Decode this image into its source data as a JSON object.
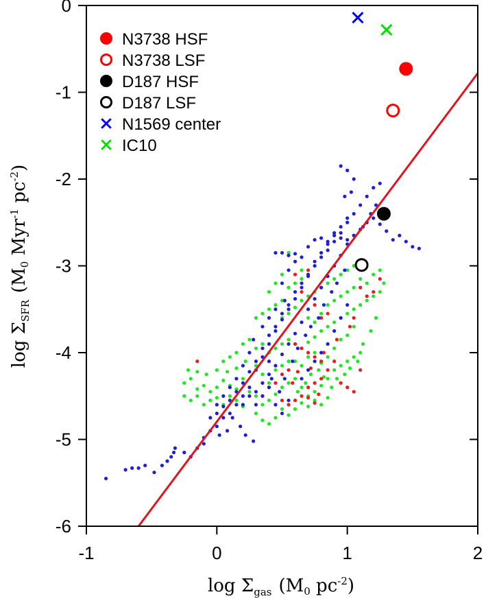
{
  "chart_data": {
    "type": "scatter",
    "xlim": [
      -1,
      2
    ],
    "ylim": [
      -6,
      0
    ],
    "x_ticks": [
      "-1",
      "0",
      "1",
      "2"
    ],
    "y_ticks": [
      "-6",
      "-5",
      "-4",
      "-3",
      "-2",
      "-1",
      "0"
    ],
    "xlabel": {
      "prefix": "log Σ",
      "sub": "gas",
      "suffix": "(M",
      "sub2": "0",
      "tail": " pc",
      "sup": "-2",
      "close": ")"
    },
    "ylabel": {
      "prefix": "log Σ",
      "sub": "SFR",
      "suffix": "(M",
      "sub2": "0",
      "tail": " Myr",
      "sup": "-1",
      "tail2": " pc",
      "sup2": "-2",
      "close": ")"
    },
    "grid": false,
    "legend_position": "top-left",
    "legend": [
      {
        "label": "N3738 HSF",
        "marker": "filled-circle",
        "color": "#ff0000"
      },
      {
        "label": "N3738 LSF",
        "marker": "open-circle",
        "color": "#ff0000"
      },
      {
        "label": "D187 HSF",
        "marker": "filled-circle",
        "color": "#000000"
      },
      {
        "label": "D187 LSF",
        "marker": "open-circle",
        "color": "#000000"
      },
      {
        "label": "N1569 center",
        "marker": "cross",
        "color": "#0000ff"
      },
      {
        "label": "IC10",
        "marker": "cross",
        "color": "#00e000"
      }
    ],
    "highlight_points": [
      {
        "name": "N3738 HSF",
        "x": 1.45,
        "y": -0.73,
        "marker": "filled-circle",
        "color": "#ff0000"
      },
      {
        "name": "N3738 LSF",
        "x": 1.35,
        "y": -1.21,
        "marker": "open-circle",
        "color": "#ff0000"
      },
      {
        "name": "D187 HSF",
        "x": 1.28,
        "y": -2.4,
        "marker": "filled-circle",
        "color": "#000000"
      },
      {
        "name": "D187 LSF",
        "x": 1.11,
        "y": -2.99,
        "marker": "open-circle",
        "color": "#000000"
      },
      {
        "name": "N1569 center",
        "x": 1.08,
        "y": -0.14,
        "marker": "cross",
        "color": "#0000ff"
      },
      {
        "name": "IC10",
        "x": 1.3,
        "y": -0.28,
        "marker": "cross",
        "color": "#00e000"
      }
    ],
    "fit_line": {
      "color": "#e0141e",
      "points": [
        [
          -0.6,
          -6.0
        ],
        [
          2.0,
          -0.78
        ]
      ]
    },
    "blue_points": [
      [
        -0.85,
        -5.45
      ],
      [
        -0.7,
        -5.35
      ],
      [
        -0.65,
        -5.33
      ],
      [
        -0.6,
        -5.33
      ],
      [
        -0.55,
        -5.3
      ],
      [
        -0.48,
        -5.38
      ],
      [
        -0.42,
        -5.3
      ],
      [
        -0.38,
        -5.25
      ],
      [
        -0.33,
        -5.15
      ],
      [
        -0.32,
        -5.1
      ],
      [
        -0.2,
        -5.2
      ],
      [
        -0.15,
        -5.1
      ],
      [
        -0.1,
        -4.98
      ],
      [
        -0.05,
        -4.9
      ],
      [
        0.0,
        -4.85
      ],
      [
        0.05,
        -4.75
      ],
      [
        0.1,
        -4.7
      ],
      [
        0.15,
        -4.6
      ],
      [
        0.2,
        -4.5
      ],
      [
        0.25,
        -4.4
      ],
      [
        -0.05,
        -4.75
      ],
      [
        0.0,
        -4.7
      ],
      [
        0.05,
        -4.62
      ],
      [
        0.1,
        -4.55
      ],
      [
        0.15,
        -4.45
      ],
      [
        0.2,
        -4.35
      ],
      [
        0.25,
        -4.22
      ],
      [
        0.3,
        -4.1
      ],
      [
        0.35,
        -3.95
      ],
      [
        0.4,
        -3.8
      ],
      [
        0.45,
        -3.7
      ],
      [
        0.5,
        -3.55
      ],
      [
        0.55,
        -3.45
      ],
      [
        0.6,
        -3.3
      ],
      [
        0.65,
        -3.2
      ],
      [
        0.7,
        -3.1
      ],
      [
        0.75,
        -2.95
      ],
      [
        0.8,
        -2.85
      ],
      [
        0.85,
        -2.75
      ],
      [
        0.9,
        -2.65
      ],
      [
        0.95,
        -2.55
      ],
      [
        1.0,
        -2.5
      ],
      [
        1.05,
        -2.4
      ],
      [
        1.1,
        -2.3
      ],
      [
        1.15,
        -2.2
      ],
      [
        1.2,
        -2.1
      ],
      [
        1.25,
        -2.05
      ],
      [
        1.22,
        -2.3
      ],
      [
        1.18,
        -2.4
      ],
      [
        1.12,
        -2.55
      ],
      [
        0.3,
        -4.2
      ],
      [
        0.35,
        -4.05
      ],
      [
        0.4,
        -3.9
      ],
      [
        0.45,
        -3.75
      ],
      [
        0.5,
        -3.62
      ],
      [
        0.55,
        -3.5
      ],
      [
        0.6,
        -3.38
      ],
      [
        0.65,
        -3.25
      ],
      [
        0.7,
        -3.12
      ],
      [
        0.75,
        -3.0
      ],
      [
        0.8,
        -2.9
      ],
      [
        0.85,
        -2.82
      ],
      [
        0.9,
        -2.72
      ],
      [
        0.95,
        -2.62
      ],
      [
        1.0,
        -2.45
      ],
      [
        0.3,
        -4.45
      ],
      [
        0.35,
        -4.35
      ],
      [
        0.4,
        -4.25
      ],
      [
        0.45,
        -4.15
      ],
      [
        0.5,
        -4.02
      ],
      [
        0.55,
        -3.9
      ],
      [
        0.6,
        -3.78
      ],
      [
        0.65,
        -3.65
      ],
      [
        0.7,
        -3.5
      ],
      [
        0.75,
        -3.38
      ],
      [
        0.8,
        -3.25
      ],
      [
        0.85,
        -3.12
      ],
      [
        0.9,
        -3.0
      ],
      [
        0.95,
        -2.88
      ],
      [
        1.0,
        -2.75
      ],
      [
        0.45,
        -2.85
      ],
      [
        0.5,
        -2.85
      ],
      [
        0.55,
        -2.88
      ],
      [
        0.6,
        -2.86
      ],
      [
        0.65,
        -2.9
      ],
      [
        0.7,
        -2.78
      ],
      [
        0.75,
        -2.7
      ],
      [
        0.8,
        -2.68
      ],
      [
        0.85,
        -2.72
      ],
      [
        0.9,
        -2.62
      ],
      [
        0.95,
        -2.68
      ],
      [
        1.0,
        -2.7
      ],
      [
        1.05,
        -2.65
      ],
      [
        1.1,
        -2.58
      ],
      [
        1.15,
        -2.5
      ],
      [
        1.2,
        -2.45
      ],
      [
        1.25,
        -2.52
      ],
      [
        1.3,
        -2.6
      ],
      [
        1.35,
        -2.7
      ],
      [
        1.4,
        -2.65
      ],
      [
        1.45,
        -2.72
      ],
      [
        1.5,
        -2.78
      ],
      [
        1.55,
        -2.8
      ],
      [
        0.95,
        -1.85
      ],
      [
        1.0,
        -1.9
      ],
      [
        1.05,
        -2.0
      ],
      [
        0.98,
        -2.2
      ],
      [
        1.03,
        -2.15
      ],
      [
        0.2,
        -4.6
      ],
      [
        0.25,
        -4.5
      ],
      [
        0.3,
        -4.6
      ],
      [
        0.35,
        -4.5
      ],
      [
        0.4,
        -4.4
      ],
      [
        0.45,
        -4.6
      ],
      [
        0.5,
        -4.7
      ],
      [
        0.55,
        -4.55
      ],
      [
        0.12,
        -4.75
      ],
      [
        0.18,
        -4.85
      ],
      [
        0.22,
        -4.95
      ],
      [
        0.28,
        -5.02
      ],
      [
        0.08,
        -4.9
      ],
      [
        0.02,
        -4.95
      ],
      [
        -0.1,
        -5.05
      ],
      [
        -0.25,
        -5.15
      ],
      [
        -0.35,
        -5.2
      ],
      [
        0.4,
        -4.1
      ],
      [
        0.42,
        -4.3
      ],
      [
        0.48,
        -4.45
      ],
      [
        0.52,
        -4.3
      ],
      [
        0.58,
        -4.1
      ],
      [
        0.62,
        -3.95
      ],
      [
        0.68,
        -3.8
      ],
      [
        0.72,
        -3.7
      ],
      [
        0.78,
        -3.6
      ],
      [
        0.82,
        -3.45
      ],
      [
        0.88,
        -3.3
      ],
      [
        0.92,
        -3.2
      ],
      [
        0.98,
        -3.05
      ],
      [
        0.5,
        -3.2
      ],
      [
        0.55,
        -3.05
      ],
      [
        0.6,
        -2.95
      ],
      [
        0.52,
        -3.4
      ],
      [
        0.45,
        -3.5
      ],
      [
        0.4,
        -3.6
      ],
      [
        0.35,
        -3.7
      ],
      [
        0.28,
        -3.85
      ],
      [
        0.25,
        -4.0
      ],
      [
        0.2,
        -4.15
      ],
      [
        0.15,
        -4.3
      ],
      [
        0.1,
        -4.4
      ],
      [
        0.05,
        -4.5
      ],
      [
        0.0,
        -4.6
      ],
      [
        0.65,
        -4.3
      ],
      [
        0.7,
        -4.2
      ],
      [
        0.75,
        -4.1
      ],
      [
        0.8,
        -4.0
      ],
      [
        0.85,
        -3.9
      ],
      [
        0.9,
        -3.75
      ],
      [
        0.95,
        -3.6
      ],
      [
        1.0,
        -3.45
      ]
    ],
    "green_points": [
      [
        -0.25,
        -4.35
      ],
      [
        -0.2,
        -4.3
      ],
      [
        -0.15,
        -4.42
      ],
      [
        -0.1,
        -4.38
      ],
      [
        -0.05,
        -4.45
      ],
      [
        0.0,
        -4.4
      ],
      [
        0.05,
        -4.32
      ],
      [
        0.1,
        -4.38
      ],
      [
        0.15,
        -4.42
      ],
      [
        0.2,
        -4.3
      ],
      [
        -0.25,
        -4.5
      ],
      [
        -0.2,
        -4.55
      ],
      [
        -0.15,
        -4.5
      ],
      [
        -0.1,
        -4.6
      ],
      [
        -0.05,
        -4.55
      ],
      [
        0.0,
        -4.52
      ],
      [
        0.05,
        -4.6
      ],
      [
        0.1,
        -4.5
      ],
      [
        0.15,
        -4.55
      ],
      [
        0.2,
        -4.62
      ],
      [
        -0.22,
        -4.2
      ],
      [
        -0.15,
        -4.22
      ],
      [
        -0.08,
        -4.25
      ],
      [
        0.0,
        -4.2
      ],
      [
        0.08,
        -4.22
      ],
      [
        0.15,
        -4.18
      ],
      [
        0.22,
        -4.1
      ],
      [
        0.3,
        -4.15
      ],
      [
        0.35,
        -4.25
      ],
      [
        0.4,
        -4.35
      ],
      [
        0.25,
        -4.45
      ],
      [
        0.3,
        -4.5
      ],
      [
        0.35,
        -4.6
      ],
      [
        0.4,
        -4.55
      ],
      [
        0.45,
        -4.48
      ],
      [
        0.5,
        -4.4
      ],
      [
        0.55,
        -4.35
      ],
      [
        0.6,
        -4.3
      ],
      [
        0.65,
        -4.4
      ],
      [
        0.7,
        -4.5
      ],
      [
        0.75,
        -4.45
      ],
      [
        0.8,
        -4.38
      ],
      [
        0.85,
        -4.3
      ],
      [
        0.9,
        -4.2
      ],
      [
        0.95,
        -4.15
      ],
      [
        1.0,
        -4.1
      ],
      [
        1.05,
        -4.05
      ],
      [
        1.1,
        -4.0
      ],
      [
        0.3,
        -4.7
      ],
      [
        0.35,
        -4.78
      ],
      [
        0.4,
        -4.82
      ],
      [
        0.45,
        -4.75
      ],
      [
        0.5,
        -4.65
      ],
      [
        0.55,
        -4.72
      ],
      [
        0.6,
        -4.65
      ],
      [
        0.65,
        -4.58
      ],
      [
        0.7,
        -4.62
      ],
      [
        0.75,
        -4.55
      ],
      [
        0.8,
        -4.6
      ],
      [
        0.85,
        -4.52
      ],
      [
        0.4,
        -4.0
      ],
      [
        0.45,
        -3.95
      ],
      [
        0.5,
        -3.9
      ],
      [
        0.55,
        -3.85
      ],
      [
        0.6,
        -3.9
      ],
      [
        0.65,
        -3.95
      ],
      [
        0.7,
        -3.88
      ],
      [
        0.75,
        -3.82
      ],
      [
        0.8,
        -3.75
      ],
      [
        0.85,
        -3.7
      ],
      [
        0.9,
        -3.65
      ],
      [
        0.95,
        -3.6
      ],
      [
        1.0,
        -3.55
      ],
      [
        1.05,
        -3.5
      ],
      [
        1.1,
        -3.45
      ],
      [
        1.15,
        -3.4
      ],
      [
        1.2,
        -3.35
      ],
      [
        1.25,
        -3.3
      ],
      [
        0.5,
        -3.6
      ],
      [
        0.55,
        -3.55
      ],
      [
        0.6,
        -3.48
      ],
      [
        0.65,
        -3.4
      ],
      [
        0.7,
        -3.35
      ],
      [
        0.75,
        -3.3
      ],
      [
        0.8,
        -3.25
      ],
      [
        0.85,
        -3.2
      ],
      [
        0.9,
        -3.15
      ],
      [
        0.95,
        -3.1
      ],
      [
        1.0,
        -3.05
      ],
      [
        1.05,
        -3.0
      ],
      [
        1.1,
        -3.15
      ],
      [
        1.15,
        -3.2
      ],
      [
        1.2,
        -3.1
      ],
      [
        1.25,
        -3.05
      ],
      [
        0.55,
        -2.85
      ],
      [
        0.6,
        -2.95
      ],
      [
        0.65,
        -3.05
      ],
      [
        0.5,
        -3.1
      ],
      [
        0.45,
        -3.2
      ],
      [
        0.4,
        -3.3
      ],
      [
        0.6,
        -4.1
      ],
      [
        0.65,
        -4.15
      ],
      [
        0.7,
        -4.05
      ],
      [
        0.75,
        -4.0
      ],
      [
        0.8,
        -4.12
      ],
      [
        0.85,
        -4.05
      ],
      [
        0.9,
        -3.95
      ],
      [
        0.95,
        -3.85
      ],
      [
        1.0,
        -3.8
      ],
      [
        1.05,
        -3.7
      ],
      [
        0.45,
        -4.2
      ],
      [
        0.5,
        -4.15
      ],
      [
        0.55,
        -4.1
      ],
      [
        0.35,
        -3.9
      ],
      [
        0.3,
        -3.95
      ],
      [
        0.25,
        -3.85
      ],
      [
        0.2,
        -3.9
      ],
      [
        0.15,
        -4.0
      ],
      [
        0.1,
        -4.05
      ],
      [
        0.05,
        -4.1
      ],
      [
        0.5,
        -3.4
      ],
      [
        0.45,
        -3.45
      ],
      [
        0.4,
        -3.5
      ],
      [
        0.35,
        -3.55
      ],
      [
        0.3,
        -3.6
      ],
      [
        0.55,
        -3.25
      ],
      [
        0.6,
        -3.2
      ],
      [
        0.65,
        -3.15
      ],
      [
        0.7,
        -3.6
      ],
      [
        0.75,
        -3.65
      ],
      [
        0.8,
        -3.55
      ],
      [
        0.85,
        -3.45
      ],
      [
        0.9,
        -3.4
      ],
      [
        0.95,
        -3.35
      ],
      [
        1.0,
        -3.3
      ],
      [
        1.05,
        -3.25
      ],
      [
        0.62,
        -4.45
      ],
      [
        0.68,
        -4.35
      ],
      [
        0.72,
        -4.25
      ],
      [
        0.78,
        -4.2
      ],
      [
        0.82,
        -4.28
      ],
      [
        0.88,
        -4.4
      ],
      [
        0.92,
        -4.3
      ],
      [
        0.98,
        -4.25
      ],
      [
        1.02,
        -4.18
      ],
      [
        1.08,
        -4.1
      ],
      [
        1.12,
        -3.9
      ],
      [
        1.18,
        -3.75
      ],
      [
        1.22,
        -3.6
      ],
      [
        1.28,
        -3.2
      ]
    ],
    "red_points": [
      [
        -0.15,
        -4.1
      ],
      [
        0.6,
        -3.1
      ],
      [
        0.7,
        -3.05
      ],
      [
        0.65,
        -3.3
      ],
      [
        1.1,
        -3.25
      ],
      [
        1.15,
        -3.35
      ],
      [
        1.2,
        -3.3
      ],
      [
        1.25,
        -3.15
      ],
      [
        0.75,
        -3.45
      ],
      [
        0.8,
        -3.6
      ],
      [
        0.85,
        -3.55
      ],
      [
        0.6,
        -3.9
      ],
      [
        0.65,
        -3.95
      ],
      [
        0.7,
        -4.0
      ],
      [
        0.75,
        -4.05
      ],
      [
        0.8,
        -4.1
      ],
      [
        0.55,
        -4.2
      ],
      [
        0.5,
        -4.25
      ],
      [
        0.45,
        -4.35
      ],
      [
        0.4,
        -4.4
      ],
      [
        0.35,
        -4.5
      ],
      [
        0.5,
        -4.55
      ],
      [
        0.55,
        -4.6
      ],
      [
        0.6,
        -4.55
      ],
      [
        0.65,
        -4.5
      ],
      [
        0.7,
        -4.4
      ],
      [
        0.75,
        -4.35
      ],
      [
        0.8,
        -4.3
      ],
      [
        0.85,
        -4.2
      ],
      [
        0.9,
        -4.1
      ],
      [
        0.95,
        -4.35
      ],
      [
        1.0,
        -4.4
      ],
      [
        1.05,
        -4.45
      ],
      [
        1.1,
        -4.2
      ],
      [
        0.7,
        -4.52
      ],
      [
        0.75,
        -4.58
      ],
      [
        0.62,
        -4.22
      ],
      [
        0.72,
        -4.18
      ],
      [
        0.82,
        -4.0
      ],
      [
        0.92,
        -3.85
      ],
      [
        1.02,
        -3.7
      ],
      [
        1.05,
        -3.6
      ],
      [
        0.58,
        -4.35
      ],
      [
        0.48,
        -4.45
      ],
      [
        0.78,
        -4.48
      ]
    ]
  }
}
